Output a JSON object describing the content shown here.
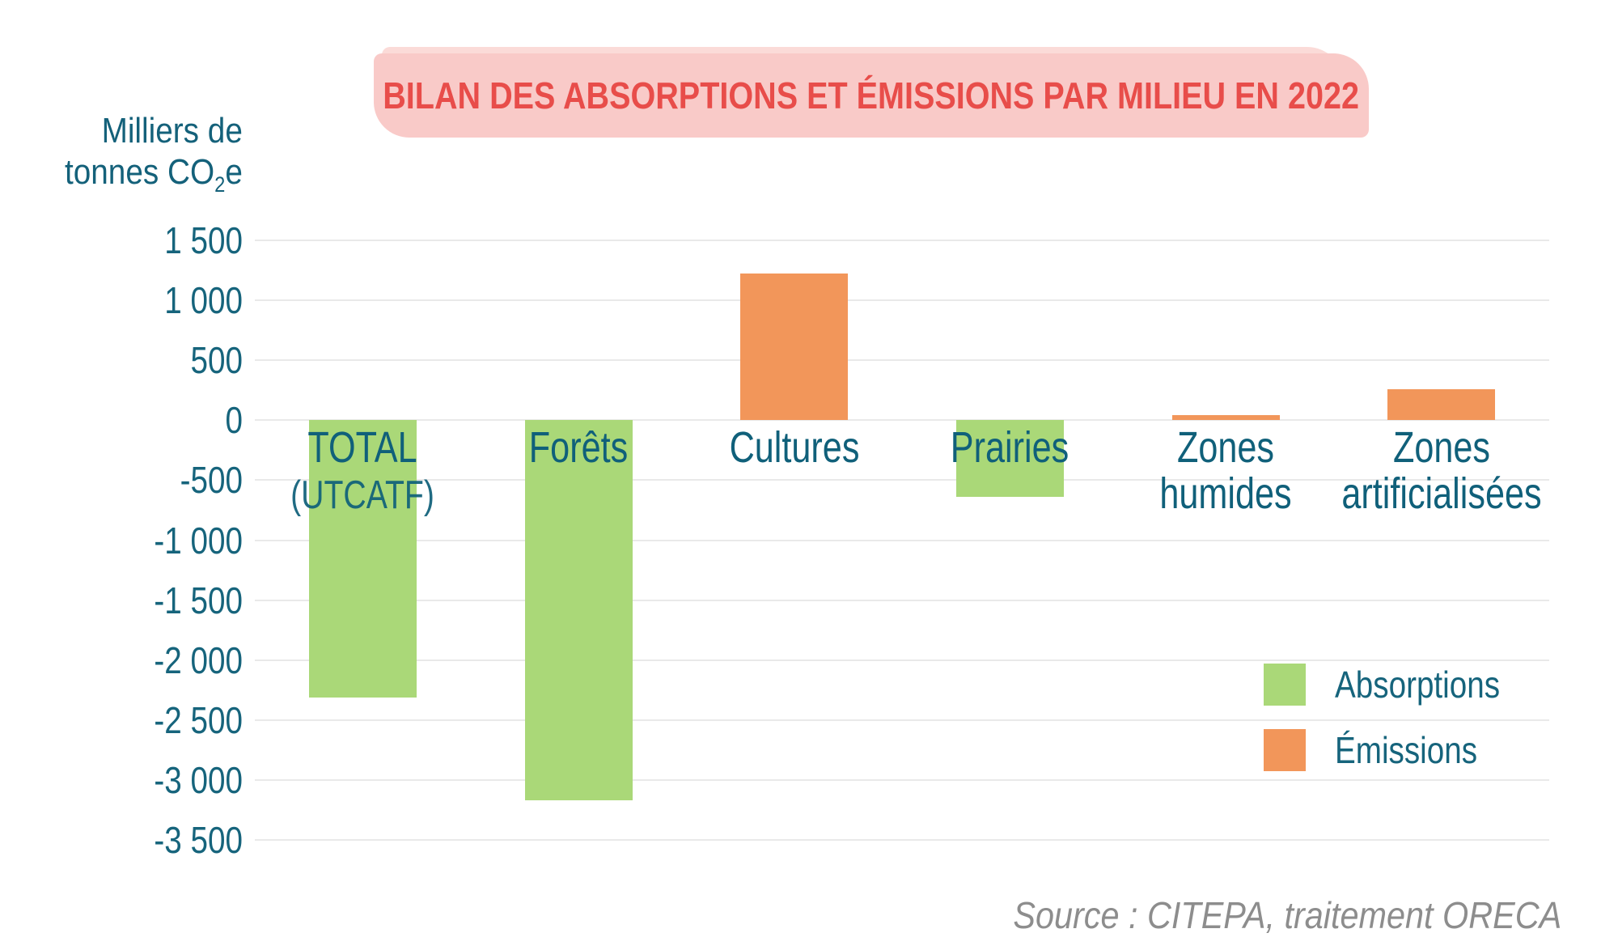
{
  "title": {
    "text": "BILAN DES ABSORPTIONS ET ÉMISSIONS PAR MILIEU EN 2022"
  },
  "y_axis": {
    "unit_line1": "Milliers de",
    "unit_line2_prefix": "tonnes CO",
    "unit_subscript": "2",
    "unit_suffix": "e",
    "tick_labels": [
      "1 500",
      "1 000",
      "500",
      "0",
      "-500",
      "-1 000",
      "-1 500",
      "-2 000",
      "-2 500",
      "-3 000",
      "-3 500"
    ]
  },
  "chart_data": {
    "type": "bar",
    "title": "BILAN DES ABSORPTIONS ET ÉMISSIONS PAR MILIEU EN 2022",
    "ylabel": "Milliers de tonnes CO2e",
    "ylim": [
      -3500,
      1500
    ],
    "ytick_step": 500,
    "grid": true,
    "legend_position": "inside bottom-right",
    "categories": [
      "TOTAL (UTCATF)",
      "Forêts",
      "Cultures",
      "Prairies",
      "Zones humides",
      "Zones artificialisées"
    ],
    "values": [
      -2310,
      -3170,
      1220,
      -640,
      40,
      260
    ],
    "bars": [
      {
        "label_lines": [
          "TOTAL"
        ],
        "sublabel": "(UTCATF)",
        "value": -2310,
        "series": "Absorptions"
      },
      {
        "label_lines": [
          "Forêts"
        ],
        "value": -3170,
        "series": "Absorptions"
      },
      {
        "label_lines": [
          "Cultures"
        ],
        "value": 1220,
        "series": "Émissions"
      },
      {
        "label_lines": [
          "Prairies"
        ],
        "value": -640,
        "series": "Absorptions"
      },
      {
        "label_lines": [
          "Zones",
          "humides"
        ],
        "value": 40,
        "series": "Émissions"
      },
      {
        "label_lines": [
          "Zones",
          "artificialisées"
        ],
        "value": 260,
        "series": "Émissions"
      }
    ]
  },
  "legend": {
    "items": [
      {
        "label": "Absorptions",
        "color": "#aad878"
      },
      {
        "label": "Émissions",
        "color": "#f2965a"
      }
    ]
  },
  "source": {
    "text": "Source : CITEPA, traitement ORECA"
  },
  "colors": {
    "Absorptions": "#aad878",
    "Émissions": "#f2965a",
    "title_text": "#e84d4a",
    "title_bg": "#f9cac8",
    "axis_text": "#16647c",
    "category_text": "#10607a",
    "gridline": "#e9e9e9",
    "source_text": "#8d8d8d"
  }
}
